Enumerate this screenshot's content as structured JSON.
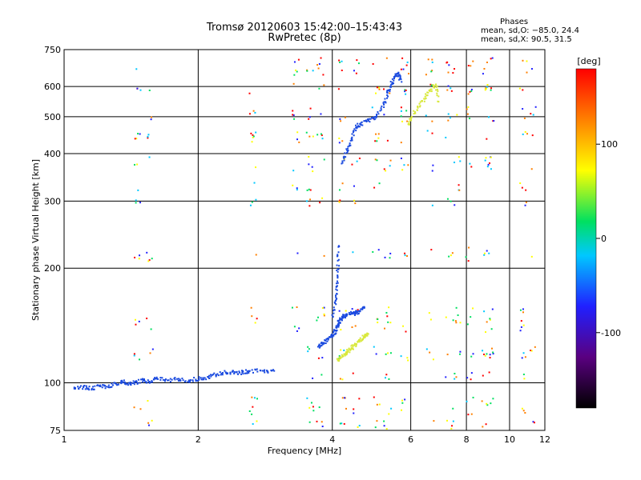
{
  "header": {
    "title": "Tromsø 20120603 15:42:00–15:43:43",
    "subtitle": "RwPretec (8p)"
  },
  "phases": {
    "heading": "Phases",
    "line1": "mean, sd,O: −85.0, 24.4",
    "line2": "mean, sd,X:  90.5, 31.5"
  },
  "chart_data": {
    "type": "scatter",
    "xlabel": "Frequency [MHz]",
    "ylabel": "Stationary phase Virtual Height [km]",
    "xscale": "log",
    "yscale": "log",
    "xlim": [
      1,
      12
    ],
    "ylim": [
      75,
      750
    ],
    "xticks": [
      1,
      2,
      4,
      6,
      8,
      10,
      12
    ],
    "yticks": [
      75,
      100,
      200,
      300,
      400,
      500,
      600,
      750
    ],
    "grid": true,
    "colorbar": {
      "label": "[deg]",
      "range": [
        -180,
        180
      ],
      "ticks": [
        100,
        0,
        -100
      ],
      "palette": [
        "#000000",
        "#5a0080",
        "#2020ff",
        "#00c8ff",
        "#00e060",
        "#ffff00",
        "#ff8000",
        "#ff0000"
      ]
    },
    "series": [
      {
        "color": "#1a4adf",
        "points": [
          [
            1.05,
            97
          ],
          [
            1.1,
            98
          ],
          [
            1.15,
            97
          ],
          [
            1.2,
            99
          ],
          [
            1.25,
            98
          ],
          [
            1.3,
            100
          ],
          [
            1.35,
            101
          ],
          [
            1.4,
            100
          ],
          [
            1.45,
            101
          ],
          [
            1.5,
            102
          ],
          [
            1.55,
            101
          ],
          [
            1.6,
            103
          ],
          [
            1.7,
            102
          ],
          [
            1.8,
            103
          ],
          [
            1.9,
            102
          ],
          [
            2.0,
            103
          ],
          [
            2.1,
            104
          ],
          [
            2.2,
            106
          ],
          [
            2.3,
            107
          ],
          [
            2.4,
            107
          ],
          [
            2.5,
            107
          ],
          [
            2.6,
            108
          ],
          [
            2.8,
            108
          ],
          [
            2.95,
            108
          ]
        ]
      },
      {
        "color": "#1a4adf",
        "points": [
          [
            3.7,
            125
          ],
          [
            3.8,
            128
          ],
          [
            3.9,
            131
          ],
          [
            4.0,
            134
          ],
          [
            4.05,
            138
          ],
          [
            4.1,
            143
          ],
          [
            4.15,
            147
          ],
          [
            4.2,
            150
          ],
          [
            4.3,
            152
          ],
          [
            4.4,
            153
          ],
          [
            4.5,
            153
          ],
          [
            4.6,
            155
          ],
          [
            4.7,
            158
          ]
        ]
      },
      {
        "color": "#1a4adf",
        "points": [
          [
            4.0,
            150
          ],
          [
            4.05,
            165
          ],
          [
            4.07,
            180
          ],
          [
            4.1,
            200
          ],
          [
            4.12,
            230
          ]
        ]
      },
      {
        "color": "#1a4adf",
        "points": [
          [
            4.2,
            380
          ],
          [
            4.3,
            410
          ],
          [
            4.4,
            440
          ],
          [
            4.5,
            470
          ],
          [
            4.6,
            480
          ],
          [
            4.8,
            490
          ],
          [
            5.0,
            500
          ],
          [
            5.2,
            540
          ],
          [
            5.3,
            580
          ],
          [
            5.4,
            610
          ],
          [
            5.5,
            640
          ],
          [
            5.6,
            650
          ],
          [
            5.7,
            620
          ]
        ]
      },
      {
        "color": "#d8e83a",
        "points": [
          [
            4.1,
            115
          ],
          [
            4.2,
            118
          ],
          [
            4.3,
            121
          ],
          [
            4.4,
            124
          ],
          [
            4.5,
            127
          ],
          [
            4.6,
            130
          ],
          [
            4.7,
            133
          ],
          [
            4.8,
            135
          ]
        ]
      },
      {
        "color": "#d8e83a",
        "points": [
          [
            5.9,
            480
          ],
          [
            6.0,
            500
          ],
          [
            6.2,
            530
          ],
          [
            6.4,
            560
          ],
          [
            6.6,
            590
          ],
          [
            6.8,
            610
          ],
          [
            6.9,
            550
          ]
        ]
      },
      {
        "color": "#ffffff",
        "label_pos": "none",
        "points": []
      }
    ]
  }
}
